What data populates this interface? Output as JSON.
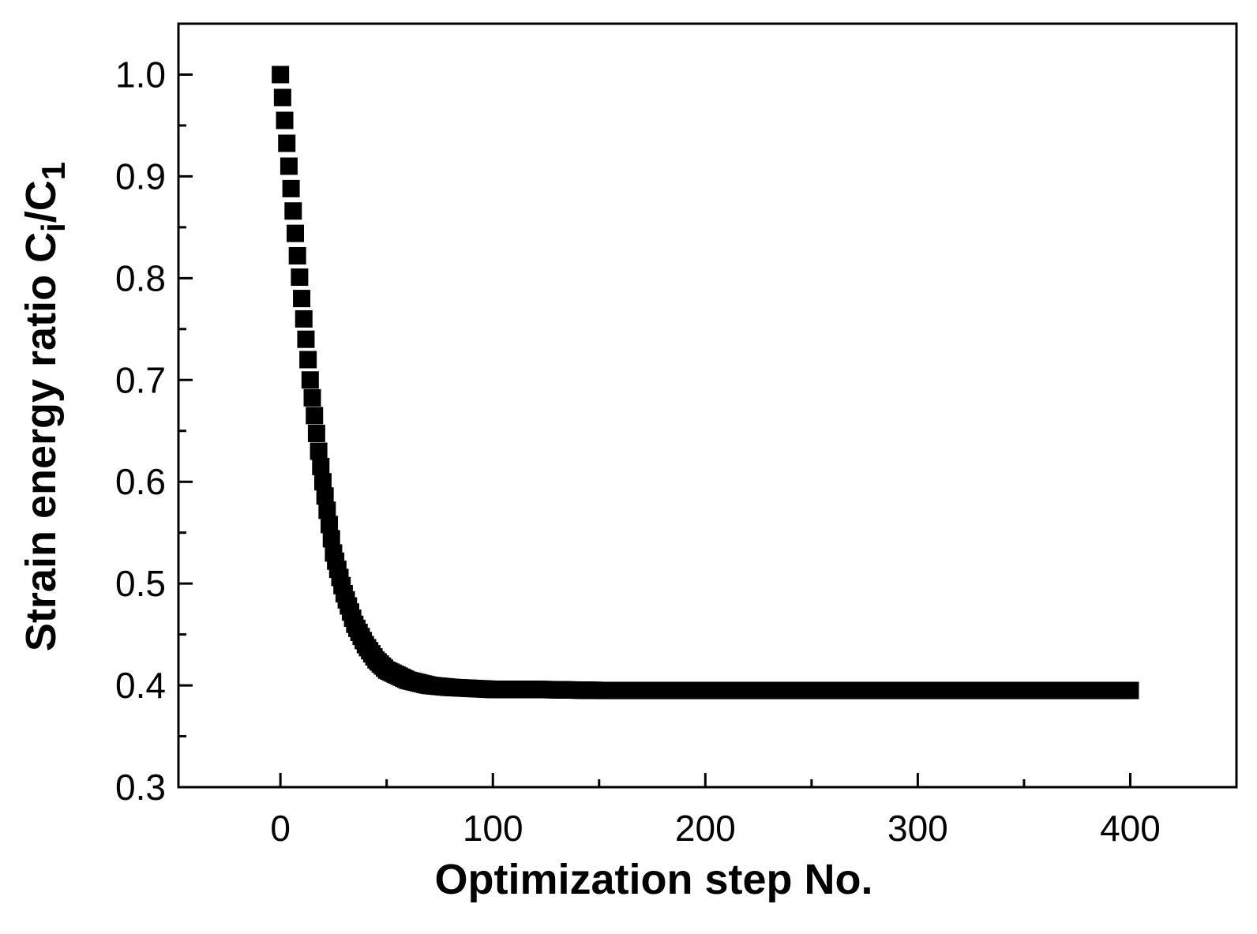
{
  "chart_data": {
    "type": "scatter",
    "xlabel": "Optimization step No.",
    "ylabel_main": "Strain energy ratio C",
    "ylabel_sub1": "i",
    "ylabel_mid": "/C",
    "ylabel_sub2": "1",
    "xlim": [
      -48,
      450
    ],
    "ylim": [
      0.3,
      1.05
    ],
    "x_ticks": [
      0,
      100,
      200,
      300,
      400
    ],
    "x_tick_labels": [
      "0",
      "100",
      "200",
      "300",
      "400"
    ],
    "y_ticks": [
      0.3,
      0.4,
      0.5,
      0.6,
      0.7,
      0.8,
      0.9,
      1.0
    ],
    "y_tick_labels": [
      "0.3",
      "0.4",
      "0.5",
      "0.6",
      "0.7",
      "0.8",
      "0.9",
      "1.0"
    ],
    "grid": false,
    "marker": "square",
    "marker_color": "#000000",
    "series": [
      {
        "x": [
          0,
          2,
          4,
          6,
          8,
          10,
          12,
          14,
          16,
          18,
          20,
          25,
          30,
          35,
          40,
          45,
          50,
          60,
          70,
          80,
          90,
          100,
          120,
          150,
          200,
          250,
          300,
          350,
          400
        ],
        "values": [
          1.0,
          0.955,
          0.91,
          0.866,
          0.822,
          0.78,
          0.74,
          0.7,
          0.665,
          0.63,
          0.6,
          0.53,
          0.49,
          0.46,
          0.44,
          0.425,
          0.415,
          0.405,
          0.4,
          0.398,
          0.397,
          0.396,
          0.396,
          0.395,
          0.395,
          0.395,
          0.395,
          0.395,
          0.395
        ]
      }
    ]
  }
}
